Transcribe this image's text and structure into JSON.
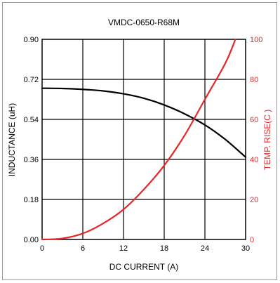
{
  "chart_data": {
    "type": "line",
    "title": "VMDC-0650-R68M",
    "xlabel": "DC CURRENT (A)",
    "ylabel_left": "INDUCTANCE (uH)",
    "ylabel_right": "TEMP. RISE(C )",
    "xlim": [
      0,
      30
    ],
    "ylim_left": [
      0,
      0.9
    ],
    "ylim_right": [
      0,
      100
    ],
    "x_ticks": [
      "0",
      "6",
      "12",
      "18",
      "24",
      "30"
    ],
    "y_left_ticks": [
      "0.00",
      "0.18",
      "0.36",
      "0.54",
      "0.72",
      "0.90"
    ],
    "y_right_ticks": [
      "0",
      "20",
      "40",
      "60",
      "80",
      "100"
    ],
    "grid": true,
    "series": [
      {
        "axis": "left",
        "color": "#000000",
        "x": [
          0,
          3,
          6,
          9,
          12,
          15,
          18,
          21,
          24,
          27,
          30
        ],
        "y": [
          0.68,
          0.679,
          0.675,
          0.668,
          0.655,
          0.635,
          0.605,
          0.565,
          0.515,
          0.45,
          0.37
        ]
      },
      {
        "axis": "right",
        "color": "#e8262a",
        "x": [
          0,
          3,
          6,
          9,
          12,
          15,
          18,
          21,
          24,
          27,
          28.5
        ],
        "y": [
          0,
          0.5,
          3,
          8,
          15,
          25,
          37,
          52,
          70,
          88,
          100
        ]
      }
    ]
  }
}
